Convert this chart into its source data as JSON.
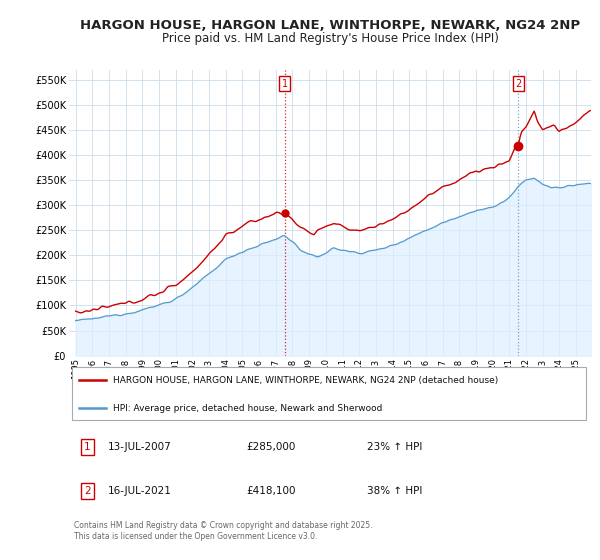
{
  "title": "HARGON HOUSE, HARGON LANE, WINTHORPE, NEWARK, NG24 2NP",
  "subtitle": "Price paid vs. HM Land Registry's House Price Index (HPI)",
  "title_fontsize": 9.5,
  "subtitle_fontsize": 8.5,
  "legend_line1": "HARGON HOUSE, HARGON LANE, WINTHORPE, NEWARK, NG24 2NP (detached house)",
  "legend_line2": "HPI: Average price, detached house, Newark and Sherwood",
  "sale1_date": "13-JUL-2007",
  "sale1_price": "£285,000",
  "sale1_hpi": "23% ↑ HPI",
  "sale2_date": "16-JUL-2021",
  "sale2_price": "£418,100",
  "sale2_hpi": "38% ↑ HPI",
  "footer": "Contains HM Land Registry data © Crown copyright and database right 2025.\nThis data is licensed under the Open Government Licence v3.0.",
  "red_color": "#cc0000",
  "blue_color": "#5599cc",
  "fill_color": "#ddeeff",
  "ylim": [
    0,
    570000
  ],
  "ytick_values": [
    0,
    50000,
    100000,
    150000,
    200000,
    250000,
    300000,
    350000,
    400000,
    450000,
    500000,
    550000
  ],
  "ytick_labels": [
    "£0",
    "£50K",
    "£100K",
    "£150K",
    "£200K",
    "£250K",
    "£300K",
    "£350K",
    "£400K",
    "£450K",
    "£500K",
    "£550K"
  ],
  "marker1_x": 2007.53,
  "marker1_y": 285000,
  "marker2_x": 2021.53,
  "marker2_y": 418100,
  "xlim_left": 1994.6,
  "xlim_right": 2025.9
}
